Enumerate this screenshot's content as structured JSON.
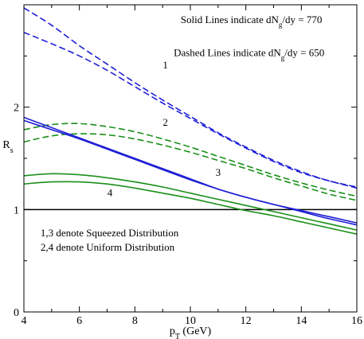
{
  "chart_data": {
    "type": "line",
    "xlabel": {
      "main": "p",
      "sub": "T",
      "rest": " (GeV)"
    },
    "ylabel": {
      "main": "R",
      "sub": "s"
    },
    "xlim": [
      4,
      16
    ],
    "ylim": [
      0,
      3
    ],
    "xticks": [
      4,
      6,
      8,
      10,
      12,
      14,
      16
    ],
    "yticks": [
      0,
      1,
      2
    ],
    "reference_line": {
      "y": 1,
      "color": "#000000"
    },
    "legend_text": {
      "solid": {
        "pre": "Solid Lines indicate dN",
        "sub": "g",
        "post": "/dy = 770"
      },
      "dashed": {
        "pre": "Dashed Lines indicate dN",
        "sub": "g",
        "post": "/dy = 650"
      },
      "squeezed": "1,3 denote Squeezed Distribution",
      "uniform": "2,4 denote Uniform Distribution"
    },
    "curve_labels": [
      {
        "text": "1",
        "x": 9.1,
        "y": 2.38
      },
      {
        "text": "2",
        "x": 9.1,
        "y": 1.82
      },
      {
        "text": "3",
        "x": 11.0,
        "y": 1.33
      },
      {
        "text": "4",
        "x": 7.1,
        "y": 1.13
      }
    ],
    "colors": {
      "blue": "#1f1fd6",
      "green": "#1a8f1a",
      "squeezed_text": "#1f1fd6",
      "uniform_text": "#1a8f1a"
    },
    "series": [
      {
        "style": "dashed",
        "color": "blue",
        "x": [
          4,
          5,
          6,
          7,
          8,
          9,
          10,
          11,
          12,
          13,
          14,
          15,
          16
        ],
        "y": [
          2.97,
          2.8,
          2.6,
          2.42,
          2.24,
          2.07,
          1.91,
          1.75,
          1.61,
          1.48,
          1.37,
          1.28,
          1.22
        ]
      },
      {
        "style": "dashed",
        "color": "blue",
        "x": [
          4,
          5,
          6,
          7,
          8,
          9,
          10,
          11,
          12,
          13,
          14,
          15,
          16
        ],
        "y": [
          2.73,
          2.62,
          2.5,
          2.36,
          2.2,
          2.04,
          1.89,
          1.74,
          1.6,
          1.47,
          1.36,
          1.28,
          1.21
        ]
      },
      {
        "style": "dashed",
        "color": "green",
        "x": [
          4,
          5,
          6,
          7,
          8,
          9,
          10,
          11,
          12,
          13,
          14,
          15,
          16
        ],
        "y": [
          1.78,
          1.83,
          1.84,
          1.81,
          1.76,
          1.69,
          1.61,
          1.52,
          1.43,
          1.34,
          1.26,
          1.19,
          1.13
        ]
      },
      {
        "style": "dashed",
        "color": "green",
        "x": [
          4,
          5,
          6,
          7,
          8,
          9,
          10,
          11,
          12,
          13,
          14,
          15,
          16
        ],
        "y": [
          1.66,
          1.72,
          1.74,
          1.73,
          1.69,
          1.63,
          1.56,
          1.48,
          1.4,
          1.31,
          1.23,
          1.15,
          1.09
        ]
      },
      {
        "style": "solid",
        "color": "blue",
        "x": [
          4,
          5,
          6,
          7,
          8,
          9,
          10,
          11,
          12,
          13,
          14,
          15,
          16
        ],
        "y": [
          1.9,
          1.8,
          1.7,
          1.6,
          1.5,
          1.4,
          1.3,
          1.2,
          1.12,
          1.05,
          0.98,
          0.91,
          0.85
        ]
      },
      {
        "style": "solid",
        "color": "blue",
        "x": [
          4,
          5,
          6,
          7,
          8,
          9,
          10,
          11,
          12,
          13,
          14,
          15,
          16
        ],
        "y": [
          1.87,
          1.78,
          1.69,
          1.59,
          1.49,
          1.39,
          1.29,
          1.2,
          1.12,
          1.05,
          0.99,
          0.93,
          0.87
        ]
      },
      {
        "style": "solid",
        "color": "green",
        "x": [
          4,
          5,
          6,
          7,
          8,
          9,
          10,
          11,
          12,
          13,
          14,
          15,
          16
        ],
        "y": [
          1.33,
          1.35,
          1.34,
          1.31,
          1.27,
          1.22,
          1.16,
          1.1,
          1.04,
          0.98,
          0.92,
          0.86,
          0.8
        ]
      },
      {
        "style": "solid",
        "color": "green",
        "x": [
          4,
          5,
          6,
          7,
          8,
          9,
          10,
          11,
          12,
          13,
          14,
          15,
          16
        ],
        "y": [
          1.25,
          1.27,
          1.27,
          1.25,
          1.21,
          1.16,
          1.11,
          1.05,
          0.99,
          0.94,
          0.88,
          0.82,
          0.76
        ]
      }
    ]
  }
}
